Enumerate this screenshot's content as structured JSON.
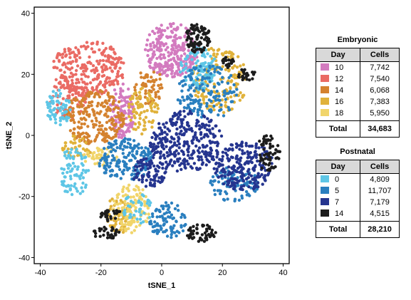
{
  "chart_data": {
    "type": "scatter",
    "xlabel": "tSNE_1",
    "ylabel": "tSNE_2",
    "xlim": [
      -42,
      42
    ],
    "ylim": [
      -42,
      42
    ],
    "xticks": [
      "-40",
      "-20",
      "0",
      "20",
      "40"
    ],
    "yticks": [
      "40",
      "20",
      "0",
      "-20",
      "-40"
    ],
    "grid": false,
    "legend_position": "right",
    "legend_groups": [
      {
        "title": "Embryonic",
        "header": [
          "Day",
          "Cells"
        ],
        "rows": [
          {
            "day": "10",
            "cells": "7,742",
            "color": "#d37bbf"
          },
          {
            "day": "12",
            "cells": "7,540",
            "color": "#ea6b64"
          },
          {
            "day": "14",
            "cells": "6,068",
            "color": "#d4822f"
          },
          {
            "day": "16",
            "cells": "7,383",
            "color": "#e0b23b"
          },
          {
            "day": "18",
            "cells": "5,950",
            "color": "#f1d56b"
          }
        ],
        "total_label": "Total",
        "total": "34,683"
      },
      {
        "title": "Postnatal",
        "header": [
          "Day",
          "Cells"
        ],
        "rows": [
          {
            "day": "0",
            "cells": "4,809",
            "color": "#5ec6e6"
          },
          {
            "day": "5",
            "cells": "11,707",
            "color": "#2a7fbf"
          },
          {
            "day": "7",
            "cells": "7,179",
            "color": "#25358f"
          },
          {
            "day": "14",
            "cells": "4,515",
            "color": "#1c1c1c"
          }
        ],
        "total_label": "Total",
        "total": "28,210"
      }
    ],
    "clusters": [
      {
        "group": "10",
        "x": 3,
        "y": 28,
        "rx": 9,
        "ry": 9,
        "n": 260
      },
      {
        "group": "10",
        "x": -13,
        "y": 8,
        "rx": 4,
        "ry": 9,
        "n": 120
      },
      {
        "group": "12",
        "x": -24,
        "y": 22,
        "rx": 12,
        "ry": 9,
        "n": 260
      },
      {
        "group": "12",
        "x": -31,
        "y": 12,
        "rx": 6,
        "ry": 7,
        "n": 90
      },
      {
        "group": "14",
        "x": -22,
        "y": 6,
        "rx": 10,
        "ry": 9,
        "n": 230
      },
      {
        "group": "14",
        "x": -4,
        "y": 16,
        "rx": 5,
        "ry": 6,
        "n": 60
      },
      {
        "group": "16",
        "x": 19,
        "y": 18,
        "rx": 9,
        "ry": 11,
        "n": 180
      },
      {
        "group": "16",
        "x": -6,
        "y": 8,
        "rx": 5,
        "ry": 8,
        "n": 80
      },
      {
        "group": "16",
        "x": -14,
        "y": -26,
        "rx": 5,
        "ry": 6,
        "n": 70
      },
      {
        "group": "16",
        "x": -28,
        "y": -4,
        "rx": 5,
        "ry": 4,
        "n": 40
      },
      {
        "group": "18",
        "x": -10,
        "y": -24,
        "rx": 6,
        "ry": 8,
        "n": 110
      },
      {
        "group": "18",
        "x": -20,
        "y": -7,
        "rx": 6,
        "ry": 3,
        "n": 40
      },
      {
        "group": "0",
        "x": 12,
        "y": 22,
        "rx": 6,
        "ry": 7,
        "n": 110
      },
      {
        "group": "0",
        "x": -34,
        "y": 9,
        "rx": 4,
        "ry": 6,
        "n": 70
      },
      {
        "group": "0",
        "x": -29,
        "y": -12,
        "rx": 5,
        "ry": 8,
        "n": 80
      },
      {
        "group": "0",
        "x": -8,
        "y": -24,
        "rx": 5,
        "ry": 5,
        "n": 40
      },
      {
        "group": "5",
        "x": 15,
        "y": 14,
        "rx": 10,
        "ry": 9,
        "n": 150
      },
      {
        "group": "5",
        "x": -12,
        "y": -8,
        "rx": 9,
        "ry": 7,
        "n": 170
      },
      {
        "group": "5",
        "x": 2,
        "y": -28,
        "rx": 6,
        "ry": 6,
        "n": 90
      },
      {
        "group": "5",
        "x": 24,
        "y": -16,
        "rx": 8,
        "ry": 6,
        "n": 90
      },
      {
        "group": "7",
        "x": 8,
        "y": -2,
        "rx": 12,
        "ry": 10,
        "n": 300
      },
      {
        "group": "7",
        "x": 27,
        "y": -10,
        "rx": 10,
        "ry": 8,
        "n": 220
      },
      {
        "group": "7",
        "x": -4,
        "y": -12,
        "rx": 6,
        "ry": 5,
        "n": 90
      },
      {
        "group": "14",
        "x": 12,
        "y": 32,
        "rx": 4,
        "ry": 5,
        "n": 90
      },
      {
        "group": "14",
        "x": 22,
        "y": 24,
        "rx": 2,
        "ry": 2,
        "n": 20
      },
      {
        "group": "14",
        "x": 28,
        "y": 20,
        "rx": 3,
        "ry": 2,
        "n": 25
      },
      {
        "group": "14",
        "x": 35,
        "y": -6,
        "rx": 4,
        "ry": 6,
        "n": 60
      },
      {
        "group": "14",
        "x": -17,
        "y": -26,
        "rx": 4,
        "ry": 2,
        "n": 30
      },
      {
        "group": "14",
        "x": -18,
        "y": -32,
        "rx": 5,
        "ry": 2,
        "n": 30
      },
      {
        "group": "14",
        "x": 13,
        "y": -32,
        "rx": 5,
        "ry": 3,
        "n": 55
      }
    ]
  }
}
